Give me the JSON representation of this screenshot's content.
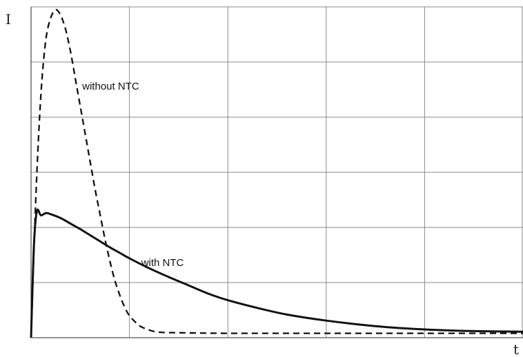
{
  "chart_data": {
    "type": "line",
    "title": "",
    "xlabel": "t",
    "ylabel": "I",
    "xlim": [
      0,
      5
    ],
    "ylim": [
      0,
      6
    ],
    "grid": true,
    "x_gridlines": [
      0,
      1,
      2,
      3,
      4,
      5
    ],
    "y_gridlines": [
      0,
      1,
      2,
      3,
      4,
      5,
      6
    ],
    "tick_labels_shown": false,
    "legend": "none",
    "annotations": [
      {
        "text": "without NTC",
        "x": 0.52,
        "y": 4.5,
        "series": "without NTC"
      },
      {
        "text": "with NTC",
        "x": 1.12,
        "y": 1.3,
        "series": "with NTC"
      }
    ],
    "series": [
      {
        "name": "without NTC",
        "style": "dashed",
        "color": "#111111",
        "points": [
          [
            0.0,
            0.0
          ],
          [
            0.05,
            2.6
          ],
          [
            0.1,
            4.4
          ],
          [
            0.15,
            5.4
          ],
          [
            0.2,
            5.8
          ],
          [
            0.25,
            5.95
          ],
          [
            0.3,
            5.85
          ],
          [
            0.35,
            5.6
          ],
          [
            0.4,
            5.2
          ],
          [
            0.45,
            4.7
          ],
          [
            0.5,
            4.2
          ],
          [
            0.55,
            3.7
          ],
          [
            0.6,
            3.2
          ],
          [
            0.65,
            2.7
          ],
          [
            0.7,
            2.25
          ],
          [
            0.75,
            1.8
          ],
          [
            0.8,
            1.4
          ],
          [
            0.85,
            1.05
          ],
          [
            0.9,
            0.78
          ],
          [
            0.95,
            0.56
          ],
          [
            1.0,
            0.4
          ],
          [
            1.1,
            0.22
          ],
          [
            1.2,
            0.14
          ],
          [
            1.3,
            0.1
          ],
          [
            1.5,
            0.09
          ],
          [
            2.0,
            0.08
          ],
          [
            3.0,
            0.08
          ],
          [
            4.0,
            0.08
          ],
          [
            5.0,
            0.08
          ]
        ]
      },
      {
        "name": "with NTC",
        "style": "solid",
        "color": "#111111",
        "points": [
          [
            0.0,
            0.0
          ],
          [
            0.03,
            1.7
          ],
          [
            0.06,
            2.3
          ],
          [
            0.1,
            2.22
          ],
          [
            0.15,
            2.26
          ],
          [
            0.2,
            2.24
          ],
          [
            0.3,
            2.17
          ],
          [
            0.4,
            2.07
          ],
          [
            0.5,
            1.97
          ],
          [
            0.6,
            1.86
          ],
          [
            0.7,
            1.75
          ],
          [
            0.8,
            1.64
          ],
          [
            0.9,
            1.54
          ],
          [
            1.0,
            1.44
          ],
          [
            1.2,
            1.26
          ],
          [
            1.4,
            1.1
          ],
          [
            1.6,
            0.95
          ],
          [
            1.8,
            0.8
          ],
          [
            2.0,
            0.68
          ],
          [
            2.3,
            0.54
          ],
          [
            2.6,
            0.42
          ],
          [
            3.0,
            0.31
          ],
          [
            3.5,
            0.21
          ],
          [
            4.0,
            0.15
          ],
          [
            4.5,
            0.12
          ],
          [
            5.0,
            0.11
          ]
        ]
      }
    ]
  }
}
